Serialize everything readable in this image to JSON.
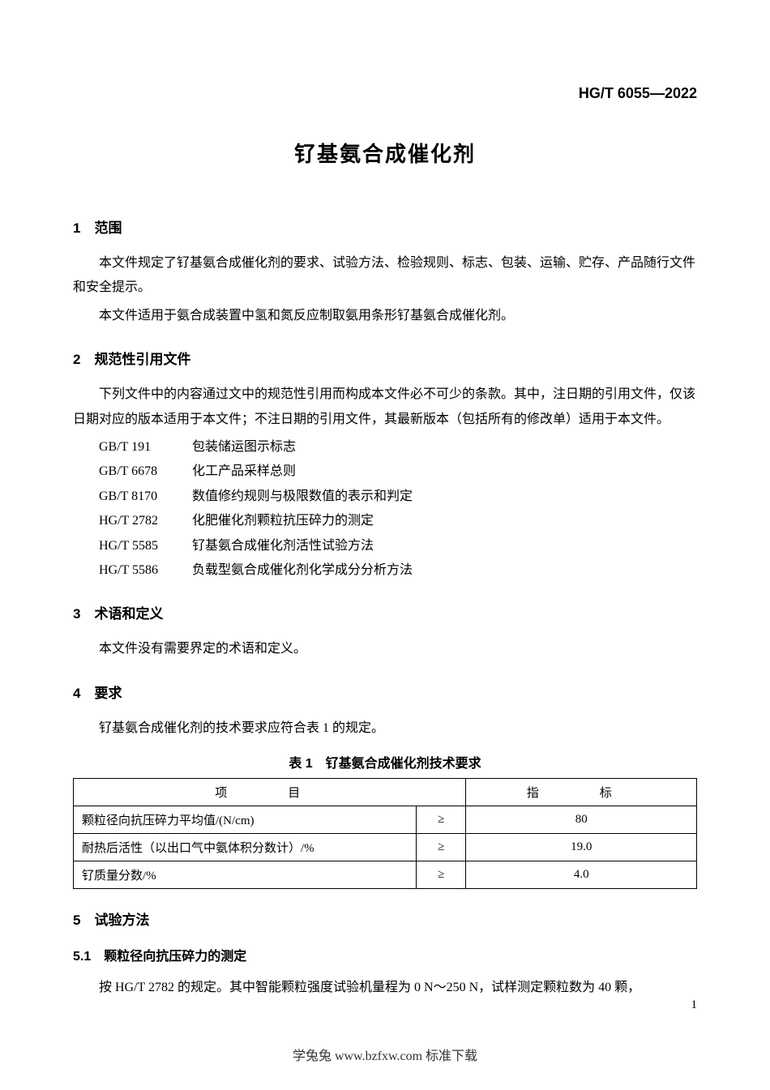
{
  "header": {
    "standard_code": "HG/T 6055—2022"
  },
  "title": "钌基氨合成催化剂",
  "sections": {
    "s1": {
      "heading": "1　范围",
      "p1": "本文件规定了钌基氨合成催化剂的要求、试验方法、检验规则、标志、包装、运输、贮存、产品随行文件和安全提示。",
      "p2": "本文件适用于氨合成装置中氢和氮反应制取氨用条形钌基氨合成催化剂。"
    },
    "s2": {
      "heading": "2　规范性引用文件",
      "p1": "下列文件中的内容通过文中的规范性引用而构成本文件必不可少的条款。其中，注日期的引用文件，仅该日期对应的版本适用于本文件；不注日期的引用文件，其最新版本（包括所有的修改单）适用于本文件。",
      "refs": [
        {
          "code": "GB/T 191",
          "name": "包装储运图示标志"
        },
        {
          "code": "GB/T 6678",
          "name": "化工产品采样总则"
        },
        {
          "code": "GB/T 8170",
          "name": "数值修约规则与极限数值的表示和判定"
        },
        {
          "code": "HG/T 2782",
          "name": "化肥催化剂颗粒抗压碎力的测定"
        },
        {
          "code": "HG/T 5585",
          "name": "钌基氨合成催化剂活性试验方法"
        },
        {
          "code": "HG/T 5586",
          "name": "负载型氨合成催化剂化学成分分析方法"
        }
      ]
    },
    "s3": {
      "heading": "3　术语和定义",
      "p1": "本文件没有需要界定的术语和定义。"
    },
    "s4": {
      "heading": "4　要求",
      "p1": "钌基氨合成催化剂的技术要求应符合表 1 的规定。",
      "table_caption": "表 1　钌基氨合成催化剂技术要求",
      "table": {
        "header_item": "项　目",
        "header_value": "指　标",
        "rows": [
          {
            "item": "颗粒径向抗压碎力平均值/(N/cm)",
            "op": "≥",
            "value": "80"
          },
          {
            "item": "耐热后活性（以出口气中氨体积分数计）/%",
            "op": "≥",
            "value": "19.0"
          },
          {
            "item": "钌质量分数/%",
            "op": "≥",
            "value": "4.0"
          }
        ]
      }
    },
    "s5": {
      "heading": "5　试验方法",
      "sub1": {
        "heading": "5.1　颗粒径向抗压碎力的测定",
        "p1": "按 HG/T 2782 的规定。其中智能颗粒强度试验机量程为 0 N～250 N，试样测定颗粒数为 40 颗，"
      }
    }
  },
  "page_number": "1",
  "footer": "学兔兔 www.bzfxw.com 标准下载"
}
